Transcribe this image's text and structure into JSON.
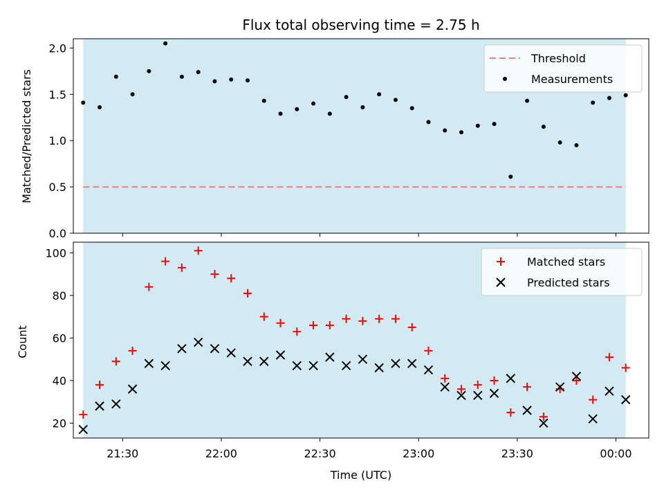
{
  "chart_data": [
    {
      "type": "scatter",
      "title": "Flux total observing time = 2.75 h",
      "xlabel": "",
      "ylabel": "Matched/Predicted stars",
      "x_axis": "time",
      "xlim": [
        "21:15",
        "00:10"
      ],
      "ylim": [
        0,
        2.1
      ],
      "yticks": [
        0.0,
        0.5,
        1.0,
        1.5,
        2.0
      ],
      "ytick_labels": [
        "0.0",
        "0.5",
        "1.0",
        "1.5",
        "2.0"
      ],
      "observing_span": [
        "21:18",
        "00:03"
      ],
      "observing_span_color": "#add8e6",
      "threshold": {
        "name": "Threshold",
        "value": 0.5,
        "style": "dashed",
        "color": "#f08080"
      },
      "legend_position": "upper right",
      "series": [
        {
          "name": "Measurements",
          "color": "#000000",
          "marker": "dot",
          "x": [
            "21:18",
            "21:23",
            "21:28",
            "21:33",
            "21:38",
            "21:43",
            "21:48",
            "21:53",
            "21:58",
            "22:03",
            "22:08",
            "22:13",
            "22:18",
            "22:23",
            "22:28",
            "22:33",
            "22:38",
            "22:43",
            "22:48",
            "22:53",
            "22:58",
            "23:03",
            "23:08",
            "23:13",
            "23:18",
            "23:23",
            "23:28",
            "23:33",
            "23:38",
            "23:43",
            "23:48",
            "23:53",
            "23:58",
            "00:03"
          ],
          "y": [
            1.41,
            1.36,
            1.69,
            1.5,
            1.75,
            2.05,
            1.69,
            1.74,
            1.64,
            1.66,
            1.65,
            1.43,
            1.29,
            1.34,
            1.4,
            1.29,
            1.47,
            1.36,
            1.5,
            1.44,
            1.35,
            1.2,
            1.11,
            1.09,
            1.16,
            1.18,
            0.61,
            1.43,
            1.15,
            0.98,
            0.95,
            1.41,
            1.46,
            1.49
          ]
        }
      ]
    },
    {
      "type": "scatter",
      "title": "",
      "xlabel": "Time (UTC)",
      "ylabel": "Count",
      "x_axis": "time",
      "xlim": [
        "21:15",
        "00:10"
      ],
      "ylim": [
        13,
        105
      ],
      "xticks": [
        "21:30",
        "22:00",
        "22:30",
        "23:00",
        "23:30",
        "00:00"
      ],
      "yticks": [
        20,
        40,
        60,
        80,
        100
      ],
      "ytick_labels": [
        "20",
        "40",
        "60",
        "80",
        "100"
      ],
      "observing_span": [
        "21:18",
        "00:03"
      ],
      "observing_span_color": "#add8e6",
      "legend_position": "upper right",
      "series": [
        {
          "name": "Matched stars",
          "color": "#ff0000",
          "marker": "plus",
          "x": [
            "21:18",
            "21:23",
            "21:28",
            "21:33",
            "21:38",
            "21:43",
            "21:48",
            "21:53",
            "21:58",
            "22:03",
            "22:08",
            "22:13",
            "22:18",
            "22:23",
            "22:28",
            "22:33",
            "22:38",
            "22:43",
            "22:48",
            "22:53",
            "22:58",
            "23:03",
            "23:08",
            "23:13",
            "23:18",
            "23:23",
            "23:28",
            "23:33",
            "23:38",
            "23:43",
            "23:48",
            "23:53",
            "23:58",
            "00:03"
          ],
          "y": [
            24,
            38,
            49,
            54,
            84,
            96,
            93,
            101,
            90,
            88,
            81,
            70,
            67,
            63,
            66,
            66,
            69,
            68,
            69,
            69,
            65,
            54,
            41,
            36,
            38,
            40,
            25,
            37,
            23,
            36,
            40,
            31,
            51,
            46
          ]
        },
        {
          "name": "Predicted stars",
          "color": "#000000",
          "marker": "x",
          "x": [
            "21:18",
            "21:23",
            "21:28",
            "21:33",
            "21:38",
            "21:43",
            "21:48",
            "21:53",
            "21:58",
            "22:03",
            "22:08",
            "22:13",
            "22:18",
            "22:23",
            "22:28",
            "22:33",
            "22:38",
            "22:43",
            "22:48",
            "22:53",
            "22:58",
            "23:03",
            "23:08",
            "23:13",
            "23:18",
            "23:23",
            "23:28",
            "23:33",
            "23:38",
            "23:43",
            "23:48",
            "23:53",
            "23:58",
            "00:03"
          ],
          "y": [
            17,
            28,
            29,
            36,
            48,
            47,
            55,
            58,
            55,
            53,
            49,
            49,
            52,
            47,
            47,
            51,
            47,
            50,
            46,
            48,
            48,
            45,
            37,
            33,
            33,
            34,
            41,
            26,
            20,
            37,
            42,
            22,
            35,
            31
          ]
        }
      ]
    }
  ]
}
